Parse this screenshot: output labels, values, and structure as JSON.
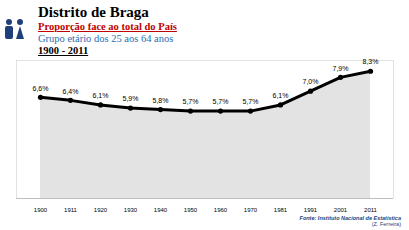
{
  "chart_data": {
    "type": "line",
    "title": "Distrito de Braga",
    "subtitle": [
      "Proporção face ao total do País",
      "Grupo etário dos 25 aos 64 anos",
      "1900 - 2011"
    ],
    "annotations": [
      "Fonte: Instituto Nacional de Estatística",
      "(Z. Ferreira)"
    ],
    "categories": [
      "1900",
      "1911",
      "1920",
      "1930",
      "1940",
      "1950",
      "1960",
      "1970",
      "1981",
      "1991",
      "2001",
      "2011"
    ],
    "values": [
      6.6,
      6.4,
      6.1,
      5.9,
      5.8,
      5.7,
      5.7,
      5.7,
      6.1,
      7.0,
      7.9,
      8.3
    ],
    "value_labels": [
      "6,6%",
      "6,4%",
      "6,1%",
      "5,9%",
      "5,8%",
      "5,7%",
      "5,7%",
      "5,7%",
      "6,1%",
      "7,0%",
      "7,9%",
      "8,3%"
    ],
    "color": "#000000",
    "marker": "circle",
    "data_labels": true,
    "tick_labels": "x",
    "grid": false,
    "ylim": [
      0,
      9
    ]
  }
}
